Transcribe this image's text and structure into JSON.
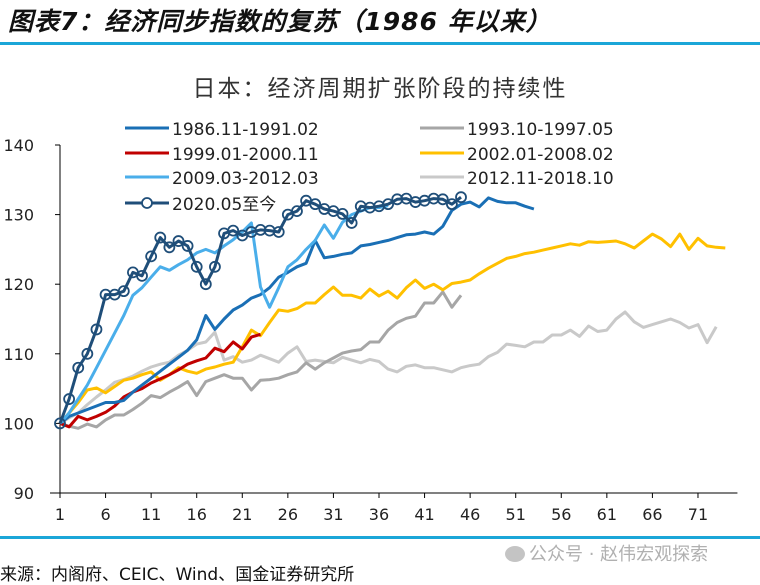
{
  "header": {
    "figure_title": "图表7：经济同步指数的复苏（1986 年以来）"
  },
  "footer": {
    "source": "来源：内阁府、CEIC、Wind、国金证券研究所",
    "watermark": "公众号 · 赵伟宏观探索"
  },
  "colors": {
    "rule": "#1ba6d8"
  },
  "chart_data": {
    "type": "line",
    "title": "日本：经济周期扩张阶段的持续性",
    "xlabel": "",
    "ylabel": "",
    "xlim": [
      1,
      75
    ],
    "ylim": [
      90,
      140
    ],
    "x_ticks": [
      "1",
      "6",
      "11",
      "16",
      "21",
      "26",
      "31",
      "36",
      "41",
      "46",
      "51",
      "56",
      "61",
      "66",
      "71"
    ],
    "y_ticks": [
      "90",
      "100",
      "110",
      "120",
      "130",
      "140"
    ],
    "legend_position": "top",
    "series": [
      {
        "name": "1986.11-1991.02",
        "color": "#1a6fb5",
        "markers": false,
        "values": [
          100,
          101,
          101.5,
          102,
          102.5,
          103,
          103,
          103.3,
          104.5,
          105.5,
          106.5,
          107.5,
          108.5,
          109.5,
          110.5,
          112,
          115.5,
          113.5,
          115,
          116.3,
          117,
          118,
          118.5,
          119.5,
          121,
          121.7,
          122.5,
          123,
          126.3,
          123.8,
          124,
          124.3,
          124.5,
          125.5,
          125.7,
          126,
          126.3,
          126.7,
          127.1,
          127.2,
          127.5,
          127.2,
          128.3,
          130.6,
          131.5,
          131.8,
          131.1,
          132.4,
          131.9,
          131.7,
          131.7,
          131.2,
          130.8
        ]
      },
      {
        "name": "1993.10-1997.05",
        "color": "#a6a6a6",
        "markers": false,
        "values": [
          100,
          99.6,
          99.3,
          99.9,
          99.5,
          100.5,
          101.2,
          101.2,
          102,
          102.9,
          104,
          103.7,
          104.5,
          105.2,
          106,
          104,
          106,
          106.5,
          107,
          106.5,
          106.5,
          104.8,
          106.2,
          106.3,
          106.5,
          107,
          107.4,
          108.7,
          107.8,
          108.7,
          109.4,
          110.1,
          110.4,
          110.6,
          111.7,
          111.7,
          113.4,
          114.5,
          115.1,
          115.4,
          117.3,
          117.3,
          118.9,
          116.7,
          118.4
        ]
      },
      {
        "name": "1999.01-2000.11",
        "color": "#c00000",
        "markers": false,
        "values": [
          100,
          99.5,
          101,
          100.5,
          101,
          101.6,
          102.5,
          103.8,
          104.5,
          105,
          105.8,
          106.4,
          107,
          107.7,
          108.5,
          109,
          109.4,
          110.8,
          110.3,
          111.7,
          110.7,
          112.4,
          112.8
        ]
      },
      {
        "name": "2002.01-2008.02",
        "color": "#ffc000",
        "markers": false,
        "values": [
          100,
          101.5,
          103,
          104.8,
          105.1,
          104.4,
          105.3,
          106.2,
          106.5,
          107,
          107.4,
          106.2,
          107,
          108,
          107.5,
          107.2,
          107.8,
          108.1,
          108.5,
          108.8,
          111,
          113.4,
          112.6,
          114.5,
          116.3,
          116.1,
          116.5,
          117.3,
          117.3,
          118.5,
          119.6,
          118.4,
          118.4,
          118,
          119.3,
          118.3,
          119,
          118,
          119.5,
          120.6,
          119.4,
          120,
          119.2,
          120.1,
          120.3,
          120.6,
          121.5,
          122.3,
          123,
          123.7,
          124,
          124.4,
          124.6,
          124.9,
          125.2,
          125.5,
          125.8,
          125.6,
          126.1,
          126,
          126.1,
          126.2,
          125.8,
          125.2,
          126.2,
          127.2,
          126.5,
          125.4,
          127.2,
          125,
          126.6,
          125.5,
          125.3,
          125.2
        ]
      },
      {
        "name": "2009.03-2012.03",
        "color": "#4aaeea",
        "markers": false,
        "values": [
          100,
          101.5,
          103.5,
          105.5,
          108,
          110.5,
          113,
          115.5,
          118.4,
          119.5,
          121,
          122.5,
          122,
          122.8,
          123.5,
          124.5,
          125,
          124.5,
          125.5,
          126.4,
          127.5,
          128.8,
          119.6,
          116.7,
          119.5,
          122.5,
          123.5,
          125,
          126.3,
          128.5,
          126.6,
          128.9,
          130,
          130.5,
          131,
          131,
          131.3
        ]
      },
      {
        "name": "2012.11-2018.10",
        "color": "#c9c9c9",
        "markers": false,
        "values": [
          100,
          100.8,
          101.5,
          102.7,
          103.8,
          104.8,
          105.9,
          106.3,
          106.8,
          107.5,
          108.1,
          108.5,
          108.8,
          109.8,
          110.5,
          111.4,
          111.7,
          113.1,
          109.1,
          109.6,
          108.8,
          109.1,
          109.8,
          109.3,
          108.8,
          110.1,
          111,
          108.9,
          109.1,
          108.9,
          108.7,
          109.5,
          109.1,
          108.7,
          109.2,
          108.9,
          107.8,
          107.4,
          108.2,
          108.4,
          108,
          108,
          107.7,
          107.4,
          108,
          108.3,
          108.5,
          109.6,
          110.2,
          111.4,
          111.2,
          111,
          111.7,
          111.7,
          112.7,
          112.7,
          113.4,
          112.5,
          114,
          113.2,
          113.4,
          115,
          116,
          114.6,
          113.8,
          114.2,
          114.6,
          115,
          114.5,
          113.7,
          114.2,
          111.6,
          113.9
        ]
      },
      {
        "name": "2020.05至今",
        "color": "#1f4e79",
        "markers": true,
        "values": [
          100,
          103.5,
          108,
          110,
          113.5,
          118.5,
          118.5,
          119,
          121.7,
          121.2,
          124,
          126.7,
          125.3,
          126.2,
          125.5,
          122.5,
          120,
          122.5,
          127.3,
          127.7,
          127,
          127.5,
          127.8,
          127.7,
          127.5,
          130,
          130.5,
          132,
          131.5,
          130.8,
          130.5,
          130.1,
          128.8,
          131.2,
          131,
          131.2,
          131.5,
          132.2,
          132.3,
          131.8,
          132,
          132.3,
          132.2,
          131.5,
          132.5
        ]
      }
    ]
  }
}
